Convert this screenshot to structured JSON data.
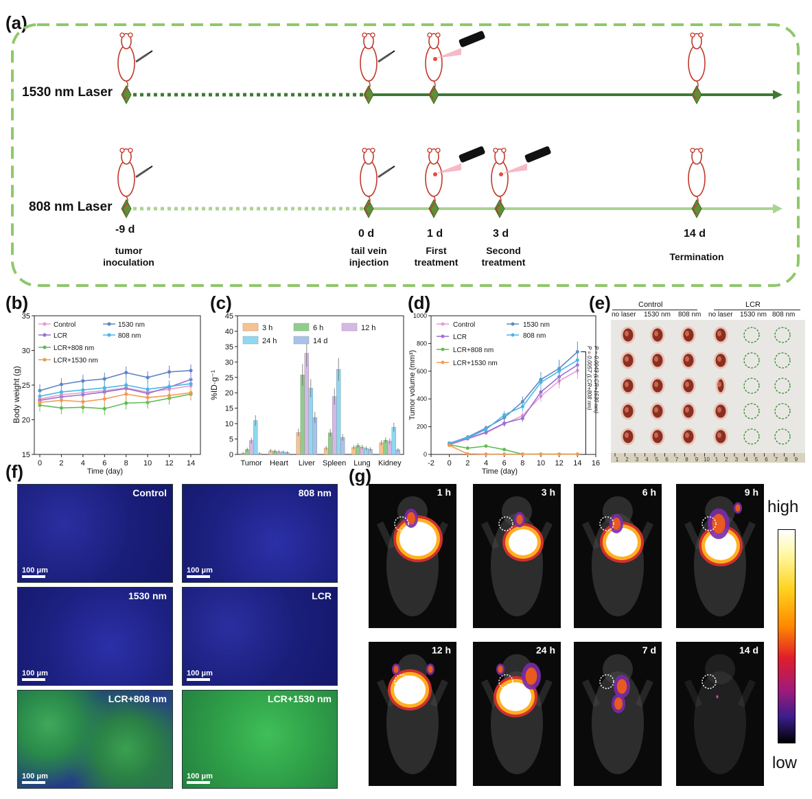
{
  "panels": {
    "a": "(a)",
    "b": "(b)",
    "c": "(c)",
    "d": "(d)",
    "e": "(e)",
    "f": "(f)",
    "g": "(g)"
  },
  "timeline": {
    "row1_label": "1530 nm Laser",
    "row2_label": "808 nm Laser",
    "days": [
      "-9 d",
      "0 d",
      "1 d",
      "3 d",
      "14 d"
    ],
    "events": [
      [
        "tumor",
        "inoculation"
      ],
      [
        "tail vein",
        "injection"
      ],
      [
        "First",
        "treatment"
      ],
      [
        "Second",
        "treatment"
      ],
      [
        "Termination"
      ]
    ],
    "colors": {
      "row1": "#3f7a35",
      "row2": "#a9d48f",
      "border": "#8fc76a",
      "diamond": "#5f8f3a"
    }
  },
  "chart_b": {
    "ylabel": "Body weight (g)",
    "xlabel": "Time (day)",
    "xticks": [
      "0",
      "2",
      "4",
      "6",
      "8",
      "10",
      "12",
      "14"
    ],
    "yticks": [
      "15",
      "20",
      "25",
      "30",
      "35"
    ],
    "legend": [
      "Control",
      "1530 nm",
      "LCR",
      "808 nm",
      "LCR+808 nm",
      "LCR+1530 nm"
    ]
  },
  "chart_c": {
    "ylabel": "%ID·g⁻¹",
    "yticks": [
      "0",
      "5",
      "10",
      "15",
      "20",
      "25",
      "30",
      "35",
      "40",
      "45"
    ],
    "categories": [
      "Tumor",
      "Heart",
      "Liver",
      "Spleen",
      "Lung",
      "Kidney"
    ],
    "legend": [
      "3 h",
      "6 h",
      "12 h",
      "24 h",
      "14 d"
    ]
  },
  "chart_d": {
    "ylabel": "Tumor volume (mm³)",
    "xlabel": "Time (day)",
    "xticks": [
      "-2",
      "0",
      "2",
      "4",
      "6",
      "8",
      "10",
      "12",
      "14",
      "16"
    ],
    "yticks": [
      "0",
      "200",
      "400",
      "600",
      "800",
      "1000"
    ],
    "legend": [
      "Control",
      "1530 nm",
      "LCR",
      "808 nm",
      "LCR+808 nm",
      "LCR+1530 nm"
    ],
    "pvalues": [
      "P = 0.0043 (LCR+1530 nm)",
      "P = 0.0057 (LCR+808 nm)"
    ]
  },
  "photo_e": {
    "groups": [
      "Control",
      "LCR"
    ],
    "columns": [
      "no laser",
      "1530 nm",
      "808 nm",
      "no laser",
      "1530 nm",
      "808 nm"
    ],
    "ruler": [
      "1",
      "2",
      "3",
      "4",
      "5",
      "6",
      "7",
      "8",
      "9",
      "10",
      "1",
      "2",
      "3",
      "4",
      "5",
      "6",
      "7",
      "8",
      "9"
    ]
  },
  "micro_f": {
    "labels": [
      "Control",
      "808 nm",
      "1530 nm",
      "LCR",
      "LCR+808 nm",
      "LCR+1530 nm"
    ],
    "scale": "100 μm"
  },
  "fluor_g": {
    "times": [
      "1 h",
      "3 h",
      "6 h",
      "9 h",
      "12 h",
      "24 h",
      "7 d",
      "14 d"
    ],
    "high": "high",
    "low": "low"
  },
  "chart_data": [
    {
      "type": "line",
      "x": [
        0,
        2,
        4,
        6,
        8,
        10,
        12,
        14
      ],
      "xlabel": "Time (day)",
      "ylabel": "Body weight (g)",
      "ylim": [
        15,
        35
      ],
      "series": [
        {
          "name": "Control",
          "values": [
            23.0,
            23.6,
            23.9,
            24.2,
            24.6,
            24.0,
            24.4,
            24.9
          ],
          "color": "#e79ad2"
        },
        {
          "name": "1530 nm",
          "values": [
            24.2,
            25.1,
            25.6,
            25.9,
            26.8,
            26.1,
            26.9,
            27.1
          ],
          "color": "#5f86c6"
        },
        {
          "name": "LCR",
          "values": [
            22.8,
            23.3,
            23.6,
            24.0,
            24.5,
            23.8,
            24.7,
            25.8
          ],
          "color": "#9b6fd0"
        },
        {
          "name": "808 nm",
          "values": [
            23.4,
            24.0,
            24.3,
            24.6,
            25.0,
            24.4,
            24.8,
            25.2
          ],
          "color": "#48b6e6"
        },
        {
          "name": "LCR+808 nm",
          "values": [
            22.1,
            21.7,
            21.8,
            21.6,
            22.4,
            22.5,
            23.1,
            23.7
          ],
          "color": "#5fbb55"
        },
        {
          "name": "LCR+1530 nm",
          "values": [
            22.5,
            22.8,
            22.6,
            23.0,
            23.7,
            23.2,
            23.5,
            23.9
          ],
          "color": "#f29a52"
        }
      ]
    },
    {
      "type": "bar",
      "categories": [
        "Tumor",
        "Heart",
        "Liver",
        "Spleen",
        "Lung",
        "Kidney"
      ],
      "ylabel": "%ID·g⁻¹",
      "ylim": [
        0,
        45
      ],
      "series": [
        {
          "name": "3 h",
          "values": [
            0.4,
            1.2,
            7.1,
            2.1,
            2.3,
            3.8
          ],
          "color": "#f7c28f"
        },
        {
          "name": "6 h",
          "values": [
            1.6,
            1.1,
            25.8,
            7.0,
            2.9,
            4.6
          ],
          "color": "#8fce8a"
        },
        {
          "name": "12 h",
          "values": [
            4.5,
            0.9,
            32.8,
            18.8,
            2.4,
            4.3
          ],
          "color": "#d6b8e6"
        },
        {
          "name": "24 h",
          "values": [
            11.0,
            0.8,
            21.5,
            27.6,
            2.0,
            8.8
          ],
          "color": "#8ed8f2"
        },
        {
          "name": "14 d",
          "values": [
            0.3,
            0.6,
            12.0,
            5.5,
            1.7,
            1.5
          ],
          "color": "#a9c2ec"
        }
      ]
    },
    {
      "type": "line",
      "x": [
        0,
        2,
        4,
        6,
        8,
        10,
        12,
        14
      ],
      "xlabel": "Time (day)",
      "ylabel": "Tumor volume (mm³)",
      "xlim": [
        -2,
        16
      ],
      "ylim": [
        0,
        1000
      ],
      "series": [
        {
          "name": "Control",
          "values": [
            68,
            112,
            155,
            220,
            280,
            420,
            530,
            605
          ],
          "color": "#e79ad2"
        },
        {
          "name": "1530 nm",
          "values": [
            80,
            125,
            190,
            265,
            380,
            540,
            620,
            740
          ],
          "color": "#5f86c6"
        },
        {
          "name": "LCR",
          "values": [
            75,
            115,
            160,
            225,
            260,
            450,
            560,
            645
          ],
          "color": "#9b6fd0"
        },
        {
          "name": "808 nm",
          "values": [
            82,
            120,
            180,
            285,
            345,
            520,
            600,
            680
          ],
          "color": "#48b6e6"
        },
        {
          "name": "LCR+808 nm",
          "values": [
            70,
            45,
            60,
            35,
            2,
            2,
            2,
            2
          ],
          "color": "#5fbb55"
        },
        {
          "name": "LCR+1530 nm",
          "values": [
            65,
            4,
            2,
            2,
            2,
            2,
            2,
            2
          ],
          "color": "#f29a52"
        }
      ]
    }
  ]
}
